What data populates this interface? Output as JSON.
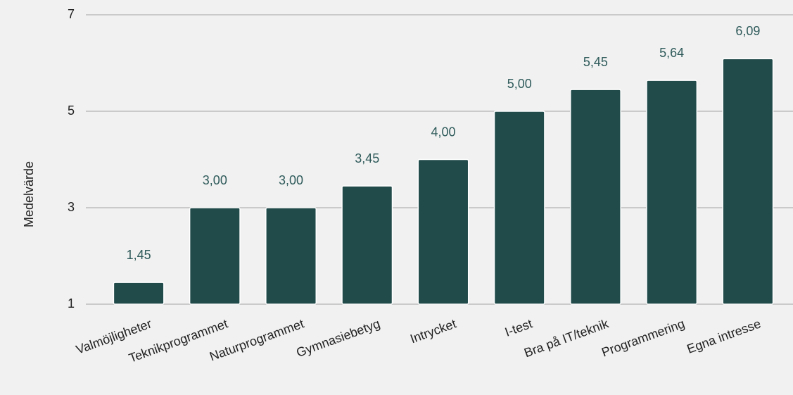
{
  "chart_data": {
    "type": "bar",
    "y_label": "Medelvärde",
    "categories": [
      "Valmöjligheter",
      "Teknikprogrammet",
      "Naturprogrammet",
      "Gymnasiebetyg",
      "Intrycket",
      "I-test",
      "Bra på IT/teknik",
      "Programmering",
      "Egna intresse"
    ],
    "values": [
      1.45,
      3.0,
      3.0,
      3.45,
      4.0,
      5.0,
      5.45,
      5.64,
      6.09
    ],
    "value_labels": [
      "1,45",
      "3,00",
      "3,00",
      "3,45",
      "4,00",
      "5,00",
      "5,45",
      "5,64",
      "6,09"
    ],
    "color": "#214a4a",
    "ylim": [
      1,
      7
    ],
    "yticks": [
      1,
      3,
      5,
      7
    ],
    "grid": true
  }
}
